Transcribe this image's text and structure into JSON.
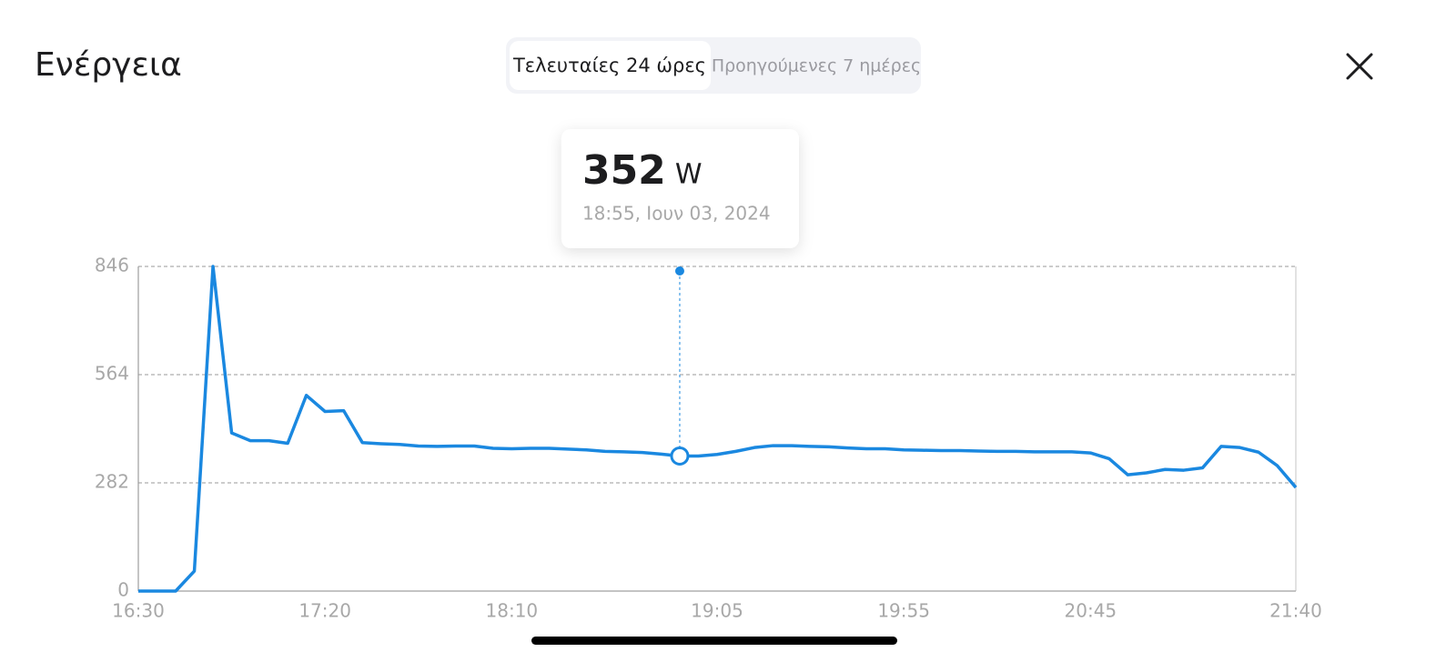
{
  "header": {
    "title": "Ενέργεια",
    "tabs": [
      "Τελευταίες 24 ώρες",
      "Προηγούμενες 7 ημέρες"
    ]
  },
  "tooltip": {
    "value": 352,
    "unit": "W",
    "time": "18:55, Ιουν 03, 2024"
  },
  "chart_data": {
    "type": "line",
    "color": "#1a88e0",
    "grid": true,
    "x": [
      "16:30",
      "16:35",
      "16:40",
      "16:45",
      "16:50",
      "16:55",
      "17:00",
      "17:05",
      "17:10",
      "17:15",
      "17:20",
      "17:25",
      "17:30",
      "17:35",
      "17:40",
      "17:45",
      "17:50",
      "17:55",
      "18:00",
      "18:05",
      "18:10",
      "18:15",
      "18:20",
      "18:25",
      "18:30",
      "18:35",
      "18:40",
      "18:45",
      "18:50",
      "18:55",
      "19:00",
      "19:05",
      "19:10",
      "19:15",
      "19:20",
      "19:25",
      "19:30",
      "19:35",
      "19:40",
      "19:45",
      "19:50",
      "19:55",
      "20:00",
      "20:05",
      "20:10",
      "20:15",
      "20:20",
      "20:25",
      "20:30",
      "20:35",
      "20:40",
      "20:45",
      "20:50",
      "20:55",
      "21:00",
      "21:05",
      "21:10",
      "21:15",
      "21:20",
      "21:25",
      "21:30",
      "21:35",
      "21:40"
    ],
    "values": [
      0,
      0,
      0,
      52,
      846,
      412,
      392,
      392,
      385,
      510,
      468,
      470,
      387,
      384,
      382,
      378,
      377,
      378,
      378,
      372,
      371,
      372,
      372,
      370,
      368,
      364,
      363,
      361,
      357,
      352,
      352,
      356,
      364,
      374,
      379,
      379,
      377,
      376,
      373,
      371,
      371,
      368,
      367,
      366,
      366,
      365,
      364,
      364,
      363,
      363,
      363,
      360,
      345,
      303,
      308,
      317,
      315,
      321,
      377,
      374,
      362,
      327,
      270
    ],
    "xlim": [
      "16:30",
      "21:40"
    ],
    "xticks": [
      "16:30",
      "17:20",
      "18:10",
      "19:05",
      "19:55",
      "20:45",
      "21:40"
    ],
    "ylim": [
      0,
      846
    ],
    "yticks": [
      0,
      282,
      564,
      846
    ]
  }
}
